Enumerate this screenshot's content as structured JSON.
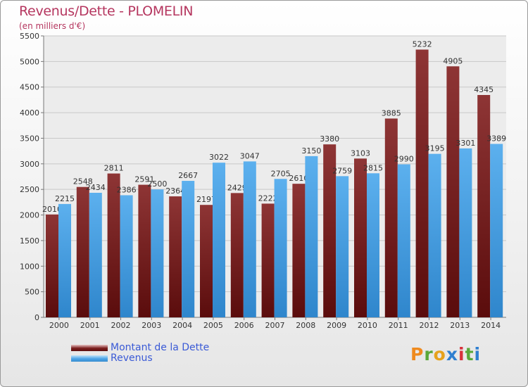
{
  "chart_data": {
    "type": "bar",
    "title": "Revenus/Dette - PLOMELIN",
    "subtitle": "(en milliers d'€)",
    "categories": [
      "2000",
      "2001",
      "2002",
      "2003",
      "2004",
      "2005",
      "2006",
      "2007",
      "2008",
      "2009",
      "2010",
      "2011",
      "2012",
      "2013",
      "2014"
    ],
    "series": [
      {
        "name": "Montant de la Dette",
        "values": [
          2010,
          2548,
          2811,
          2591,
          2364,
          2197,
          2429,
          2222,
          2610,
          3380,
          3103,
          3885,
          5232,
          4905,
          4345
        ],
        "color": "#7a1c1c"
      },
      {
        "name": "Revenus",
        "values": [
          2215,
          2434,
          2386,
          2500,
          2667,
          3022,
          3047,
          2705,
          3150,
          2759,
          2815,
          2990,
          3195,
          3301,
          3389
        ],
        "color": "#4aa3e6"
      }
    ],
    "yticks": [
      "0",
      "500",
      "1000",
      "1500",
      "2000",
      "2500",
      "3000",
      "3500",
      "4000",
      "4500",
      "5000",
      "5500"
    ],
    "ylim": [
      0,
      5500
    ],
    "grid": true,
    "legend_position": "bottom-left"
  },
  "brand": {
    "letters": [
      "P",
      "r",
      "o",
      "x",
      "i",
      "t",
      "i"
    ]
  }
}
